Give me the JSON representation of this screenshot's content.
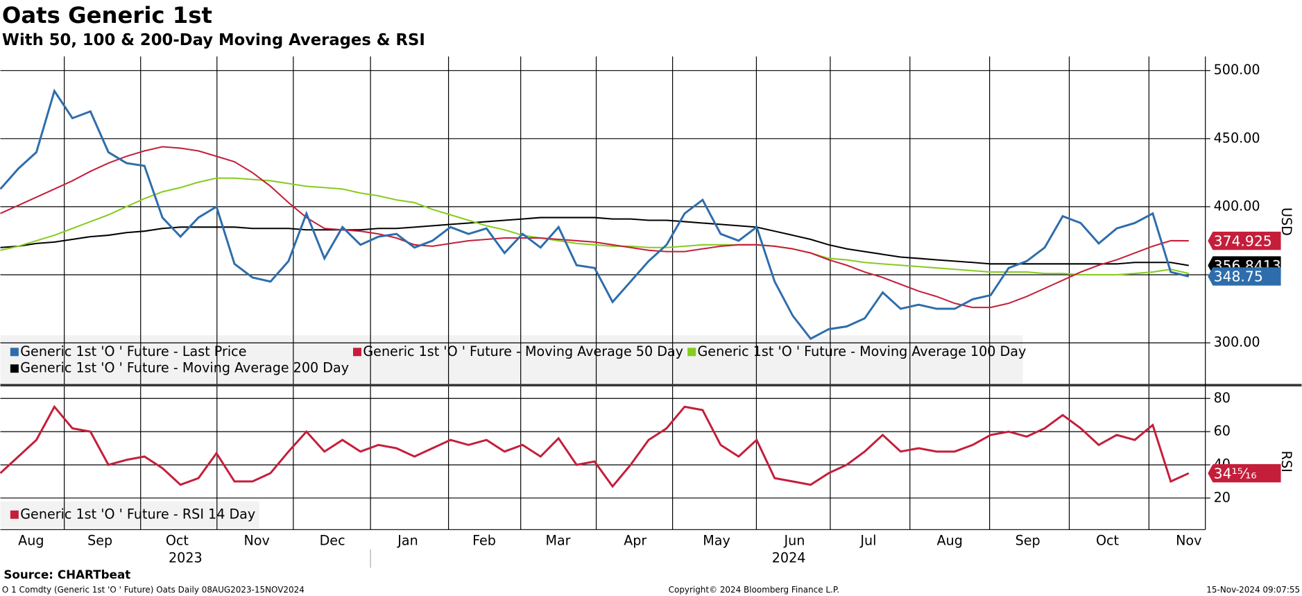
{
  "chart_data": [
    {
      "type": "line",
      "title": "Oats Generic 1st",
      "subtitle": "With 50, 100 & 200-Day Moving Averages & RSI",
      "y_label": "USD",
      "ylim": [
        270,
        510
      ],
      "yticks": [
        {
          "value": 300,
          "label": "300.00"
        },
        {
          "value": 350,
          "label": "350.00"
        },
        {
          "value": 400,
          "label": "400.00"
        },
        {
          "value": 450,
          "label": "450.00"
        },
        {
          "value": 500,
          "label": "500.00"
        }
      ],
      "grid": true,
      "series": [
        {
          "name": "Generic 1st 'O ' Future - Last Price",
          "color": "#2e6dab",
          "last_value_label": "348.75",
          "values": [
            413,
            428,
            440,
            485,
            465,
            470,
            440,
            432,
            430,
            392,
            378,
            392,
            400,
            358,
            348,
            345,
            360,
            395,
            362,
            385,
            372,
            378,
            380,
            370,
            375,
            385,
            380,
            384,
            366,
            380,
            370,
            385,
            357,
            355,
            330,
            345,
            360,
            372,
            395,
            405,
            380,
            375,
            385,
            345,
            320,
            303,
            310,
            312,
            318,
            337,
            325,
            328,
            325,
            325,
            332,
            335,
            355,
            360,
            370,
            393,
            388,
            373,
            384,
            388,
            395,
            352,
            348.75
          ]
        },
        {
          "name": "Generic 1st 'O ' Future - Moving Average 50 Day",
          "color": "#c41e3a",
          "last_value_label": "374.925",
          "values": [
            395,
            401,
            407,
            413,
            419,
            426,
            432,
            437,
            441,
            444,
            443,
            441,
            437,
            433,
            425,
            415,
            403,
            392,
            384,
            383,
            382,
            380,
            377,
            372,
            371,
            373,
            375,
            376,
            377,
            377,
            377,
            376,
            375,
            374,
            372,
            370,
            368,
            367,
            367,
            369,
            371,
            372,
            372,
            371,
            369,
            366,
            361,
            357,
            352,
            348,
            343,
            338,
            334,
            329,
            326,
            326,
            329,
            334,
            340,
            346,
            352,
            357,
            361,
            366,
            371,
            375,
            374.925
          ]
        },
        {
          "name": "Generic 1st 'O ' Future - Moving Average 100 Day",
          "color": "#86cc1e",
          "values": [
            368,
            371,
            375,
            379,
            384,
            389,
            394,
            400,
            406,
            411,
            414,
            418,
            421,
            421,
            420,
            419,
            417,
            415,
            414,
            413,
            410,
            408,
            405,
            403,
            398,
            394,
            390,
            386,
            383,
            379,
            377,
            375,
            373,
            372,
            371,
            371,
            370,
            370,
            371,
            372,
            372,
            372,
            372,
            371,
            369,
            366,
            362,
            361,
            359,
            358,
            357,
            356,
            355,
            354,
            353,
            352,
            352,
            352,
            351,
            351,
            350,
            350,
            350,
            351,
            352,
            354,
            351
          ]
        },
        {
          "name": "Generic 1st 'O ' Future - Moving Average 200 Day",
          "color": "#000000",
          "last_value_label": "356.8413",
          "values": [
            370,
            371,
            373,
            374,
            376,
            378,
            379,
            381,
            382,
            384,
            385,
            385,
            385,
            385,
            384,
            384,
            384,
            383,
            383,
            383,
            383,
            384,
            384,
            385,
            386,
            387,
            388,
            389,
            390,
            391,
            392,
            392,
            392,
            392,
            391,
            391,
            390,
            390,
            389,
            388,
            387,
            386,
            385,
            382,
            379,
            376,
            372,
            369,
            367,
            365,
            363,
            362,
            361,
            360,
            359,
            358,
            358,
            358,
            358,
            358,
            358,
            358,
            358,
            359,
            359,
            359,
            356.8413
          ]
        }
      ]
    },
    {
      "type": "line",
      "y_label": "RSI",
      "ylim": [
        0,
        87
      ],
      "yticks": [
        20,
        40,
        60,
        80
      ],
      "grid": true,
      "months": [
        "Aug",
        "Sep",
        "Oct",
        "Nov",
        "Dec",
        "Jan",
        "Feb",
        "Mar",
        "Apr",
        "May",
        "Jun",
        "Jul",
        "Aug",
        "Sep",
        "Oct",
        "Nov"
      ],
      "years": [
        "2023",
        "2024"
      ],
      "series": [
        {
          "name": "Generic 1st 'O ' Future - RSI 14 Day",
          "color": "#c41e3a",
          "last_value_label": "34¹⁵⁄₁₆",
          "values": [
            35,
            45,
            55,
            75,
            62,
            60,
            40,
            43,
            45,
            38,
            28,
            32,
            47,
            30,
            30,
            35,
            48,
            60,
            48,
            55,
            48,
            52,
            50,
            45,
            50,
            55,
            52,
            55,
            48,
            52,
            45,
            56,
            40,
            42,
            27,
            40,
            55,
            62,
            75,
            73,
            52,
            45,
            55,
            32,
            30,
            28,
            35,
            40,
            48,
            58,
            48,
            50,
            48,
            48,
            52,
            58,
            60,
            57,
            62,
            70,
            62,
            52,
            58,
            55,
            64,
            30,
            34.9375
          ]
        }
      ]
    }
  ],
  "footer": {
    "source": "Source: CHARTbeat",
    "ticker": "O 1 Comdty (Generic 1st 'O ' Future) Oats  Daily 08AUG2023-15NOV2024",
    "copyright": "Copyright© 2024 Bloomberg Finance L.P.",
    "timestamp": "15-Nov-2024 09:07:55"
  }
}
